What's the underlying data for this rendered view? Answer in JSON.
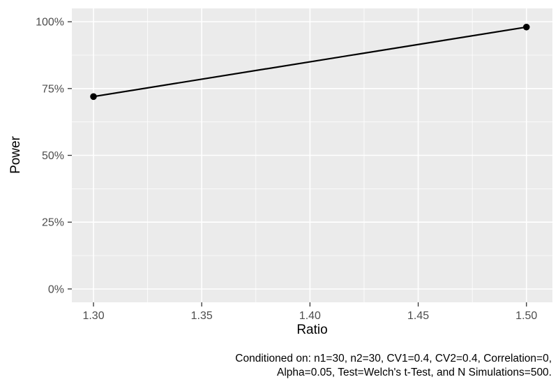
{
  "chart_data": {
    "type": "line",
    "title": "",
    "xlabel": "Ratio",
    "ylabel": "Power",
    "x": [
      1.3,
      1.5
    ],
    "series": [
      {
        "name": "Power",
        "values": [
          0.72,
          0.98
        ]
      }
    ],
    "x_ticks": [
      1.3,
      1.35,
      1.4,
      1.45,
      1.5
    ],
    "x_tick_labels": [
      "1.30",
      "1.35",
      "1.40",
      "1.45",
      "1.50"
    ],
    "y_ticks": [
      0,
      0.25,
      0.5,
      0.75,
      1.0
    ],
    "y_tick_labels": [
      "0%",
      "25%",
      "50%",
      "75%",
      "100%"
    ],
    "xlim": [
      1.29,
      1.512
    ],
    "ylim": [
      -0.05,
      1.05
    ],
    "grid": "major+minor",
    "legend_position": "none",
    "caption_lines": [
      "Conditioned on: n1=30, n2=30, CV1=0.4, CV2=0.4, Correlation=0,",
      "Alpha=0.05, Test=Welch's t-Test, and N Simulations=500."
    ],
    "colors": {
      "background": "#FFFFFF",
      "panel_background": "#EBEBEB",
      "grid_major": "#FFFFFF",
      "grid_minor": "#FFFFFF",
      "line": "#000000",
      "point": "#000000",
      "tick_label": "#4D4D4D",
      "tick_mark": "#333333",
      "axis_title": "#000000",
      "caption": "#000000"
    }
  }
}
